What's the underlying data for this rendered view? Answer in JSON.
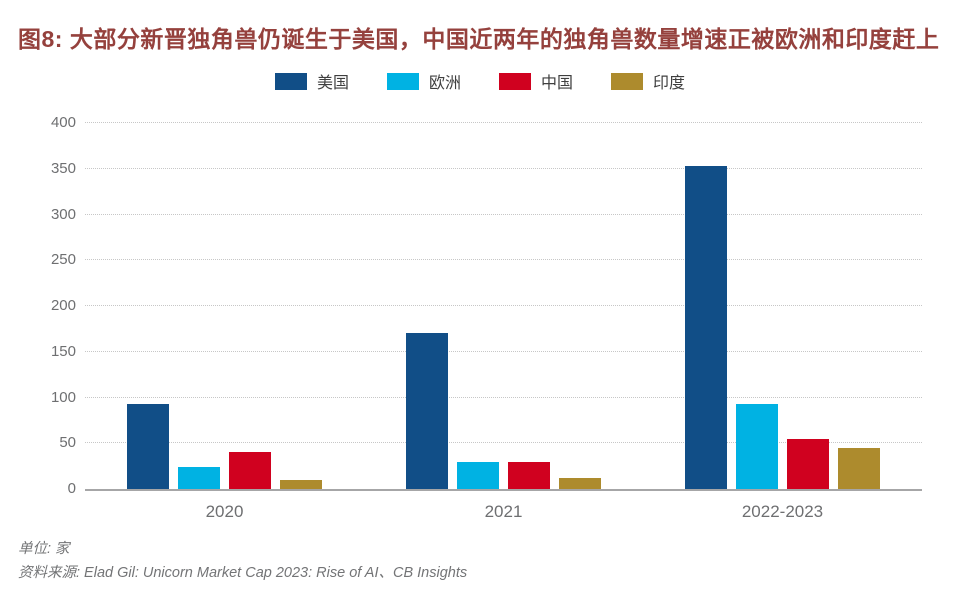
{
  "page": {
    "title": "图8: 大部分新晋独角兽仍诞生于美国，中国近两年的独角兽数量增速正被欧洲和印度赶上",
    "title_color": "#95413d"
  },
  "footer": {
    "unit": "单位: 家",
    "source": "资料来源: Elad Gil: Unicorn Market Cap 2023: Rise of AI、CB Insights"
  },
  "chart_data": {
    "type": "bar",
    "title": "图8: 大部分新晋独角兽仍诞生于美国，中国近两年的独角兽数量增速正被欧洲和印度赶上",
    "categories": [
      "2020",
      "2021",
      "2022-2023"
    ],
    "series": [
      {
        "name": "美国",
        "color": "#114e87",
        "values": [
          93,
          170,
          353
        ]
      },
      {
        "name": "欧洲",
        "color": "#00b2e3",
        "values": [
          24,
          30,
          93
        ]
      },
      {
        "name": "中国",
        "color": "#d0011f",
        "values": [
          40,
          30,
          55
        ]
      },
      {
        "name": "印度",
        "color": "#ad8b2d",
        "values": [
          10,
          12,
          45
        ]
      }
    ],
    "ylim": [
      0,
      400
    ],
    "yticks": [
      0,
      50,
      100,
      150,
      200,
      250,
      300,
      350,
      400
    ],
    "grid": "horizontal-dotted",
    "grid_color": "#c7c7c7",
    "axis_line_color": "#a6a6a7",
    "tick_label_color": "#6e6f71",
    "legend_position": "top-center",
    "unit_note": "单位: 家",
    "source_note": "资料来源: Elad Gil: Unicorn Market Cap 2023: Rise of AI、CB Insights"
  }
}
